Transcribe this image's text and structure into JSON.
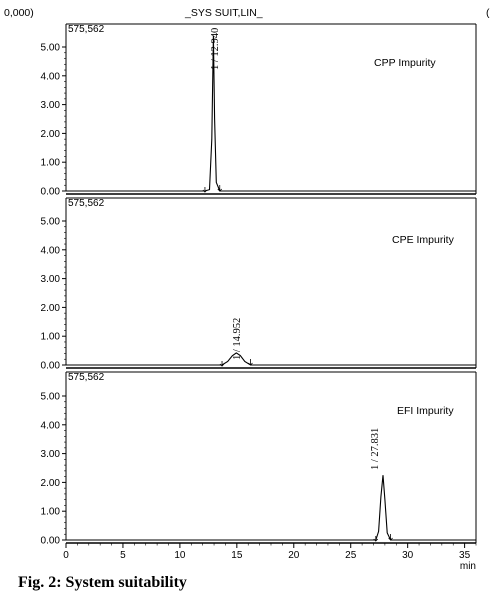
{
  "header": {
    "scale_label": "0,000)",
    "method_label": "_SYS SUIT,LIN_",
    "corner_mark": "("
  },
  "caption": "Fig. 2: System suitability",
  "chart_data": {
    "type": "line",
    "title": "",
    "xlabel": "min",
    "xlim": [
      0,
      36
    ],
    "x_ticks": [
      0,
      5,
      10,
      15,
      20,
      25,
      30,
      35
    ],
    "ylim": [
      0,
      5.5
    ],
    "y_ticks": [
      "0.00",
      "1.00",
      "2.00",
      "3.00",
      "4.00",
      "5.00"
    ],
    "grid": false,
    "panels": [
      {
        "top_value": "575,562",
        "name": "CPP Impurity",
        "peak_label": "1 / 12.940",
        "series": [
          {
            "x": [
              0,
              12.2,
              12.6,
              12.8,
              12.94,
              13.05,
              13.2,
              13.5,
              36
            ],
            "y": [
              0,
              0,
              0.05,
              1.8,
              5.4,
              2.5,
              0.3,
              0,
              0
            ]
          }
        ]
      },
      {
        "top_value": "575,562",
        "name": "CPE Impurity",
        "peak_label": "1 / 14.952",
        "series": [
          {
            "x": [
              0,
              13.7,
              14.2,
              14.6,
              14.95,
              15.3,
              15.7,
              16.2,
              36
            ],
            "y": [
              0,
              0,
              0.12,
              0.32,
              0.42,
              0.33,
              0.12,
              0,
              0
            ]
          }
        ]
      },
      {
        "top_value": "575,562",
        "name": "EFI Impurity",
        "peak_label": "1 / 27.831",
        "series": [
          {
            "x": [
              0,
              27.2,
              27.45,
              27.65,
              27.83,
              28.0,
              28.2,
              28.5,
              36
            ],
            "y": [
              0,
              0,
              0.3,
              1.5,
              2.25,
              1.4,
              0.25,
              0,
              0
            ]
          }
        ]
      }
    ]
  }
}
